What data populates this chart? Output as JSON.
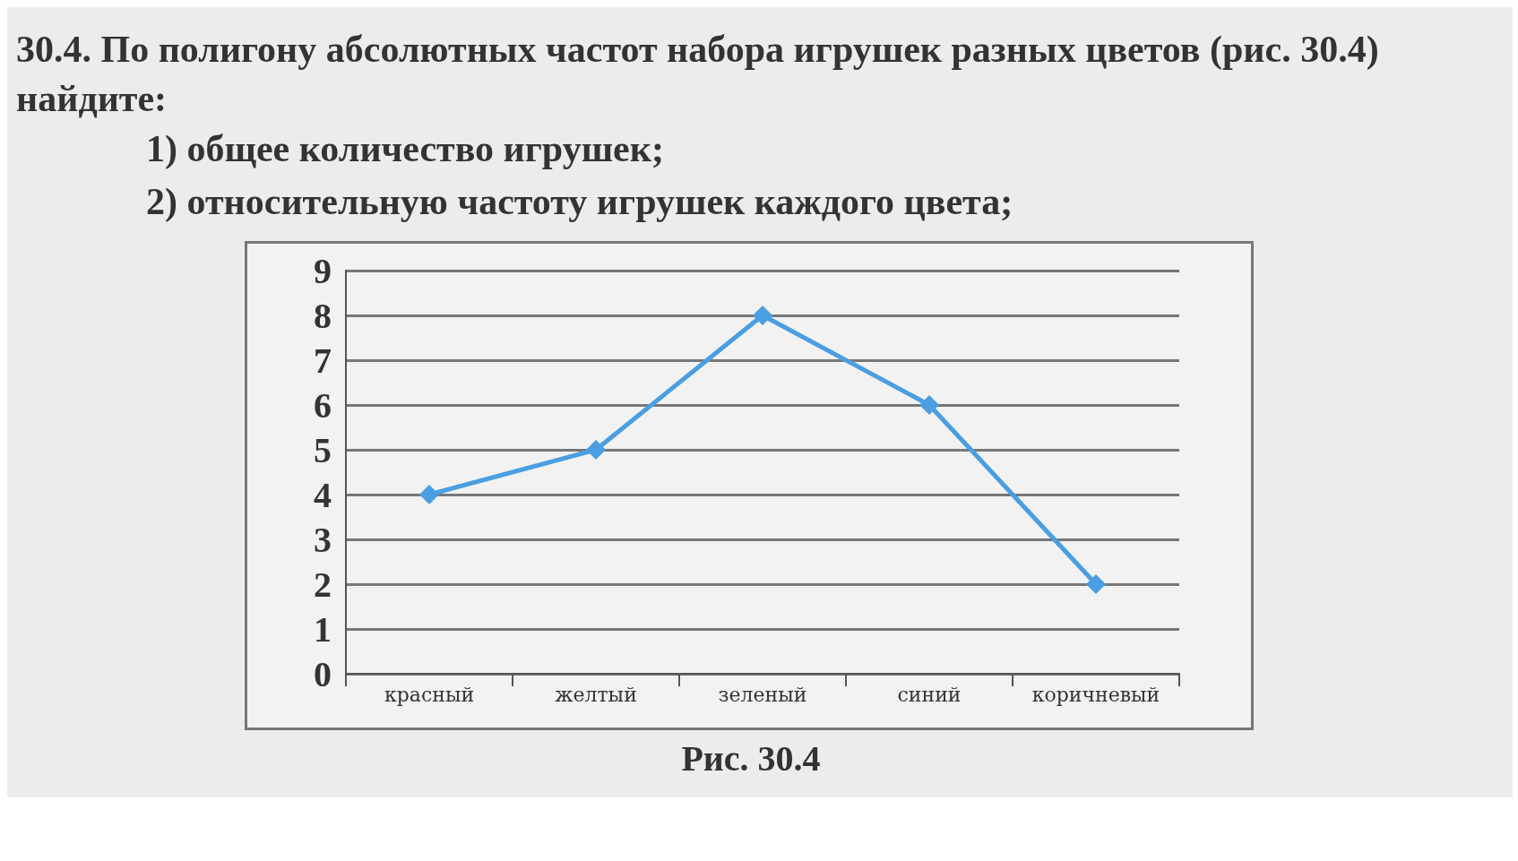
{
  "chart_data": {
    "type": "line",
    "title": "30.4. По полигону абсолютных частот набора игрушек разных цветов (рис. 30.4) найдите:",
    "annotations": [
      "1) общее количество игрушек;",
      "2) относительную частоту игрушек каждого цвета;",
      "Рис. 30.4"
    ],
    "categories": [
      "красный",
      "желтый",
      "зеленый",
      "синий",
      "коричневый"
    ],
    "series": [
      {
        "color": "#4a9ee2",
        "values": [
          4,
          5,
          8,
          6,
          2
        ]
      }
    ],
    "ylim": [
      0,
      9
    ],
    "yticks": [
      0,
      1,
      2,
      3,
      4,
      5,
      6,
      7,
      8,
      9
    ],
    "grid": "y",
    "marker": "diamond",
    "line_style": "solid"
  }
}
